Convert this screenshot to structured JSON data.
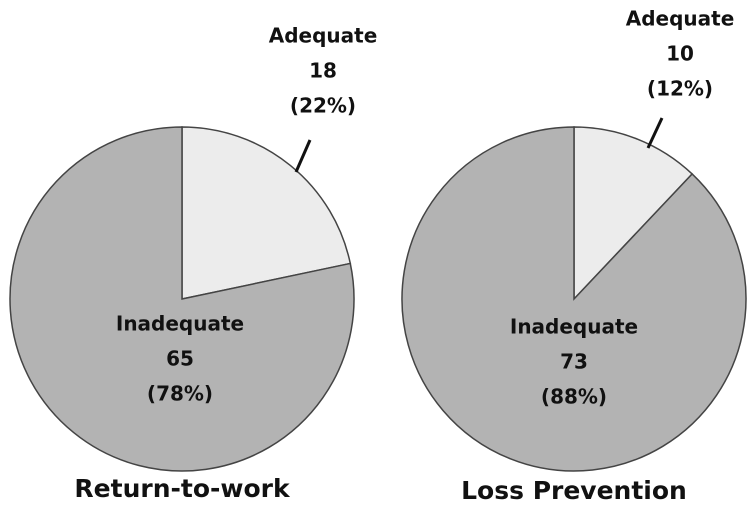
{
  "chart_data": [
    {
      "type": "pie",
      "title": "Return-to-work",
      "categories": [
        "Adequate",
        "Inadequate"
      ],
      "values": [
        18,
        65
      ],
      "percent_labels": [
        "(22%)",
        "(78%)"
      ],
      "colors": [
        "#ececec",
        "#b3b3b3"
      ]
    },
    {
      "type": "pie",
      "title": "Loss Prevention",
      "categories": [
        "Adequate",
        "Inadequate"
      ],
      "values": [
        10,
        73
      ],
      "percent_labels": [
        "(12%)",
        "(88%)"
      ],
      "colors": [
        "#ececec",
        "#b3b3b3"
      ]
    }
  ]
}
